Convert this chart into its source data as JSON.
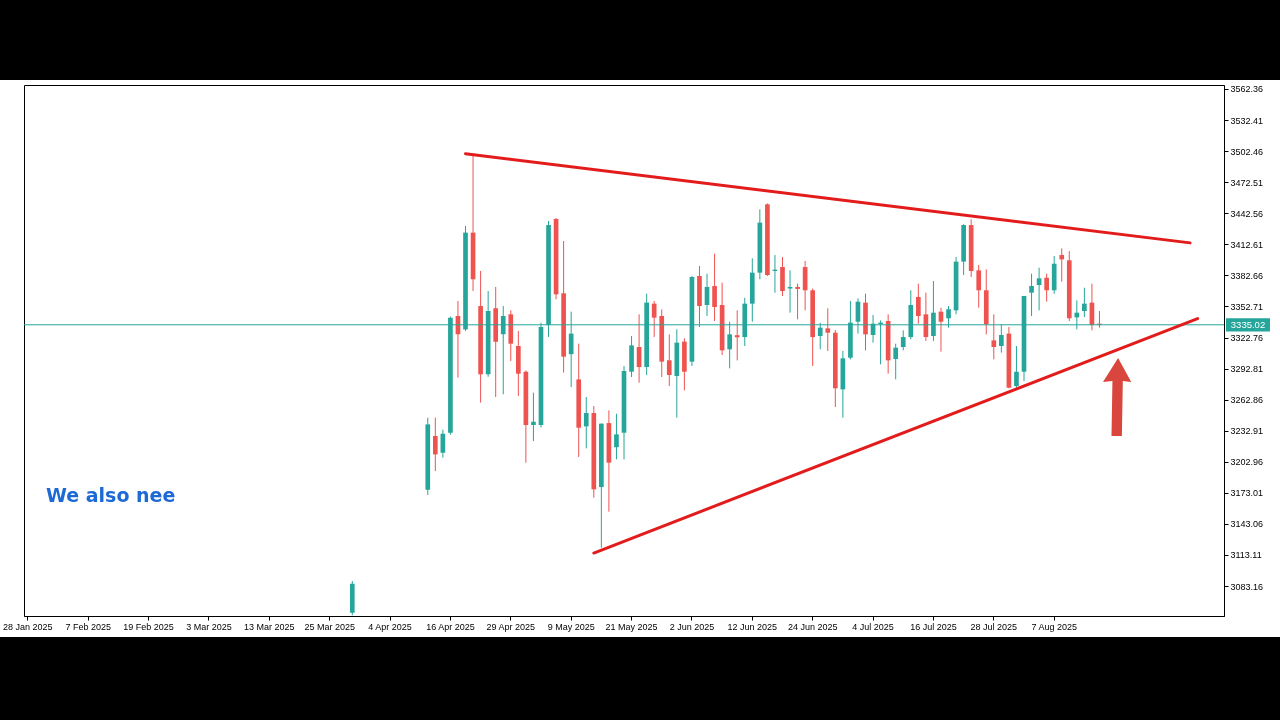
{
  "chart_data": {
    "type": "candlestick",
    "categories": [
      "28 Jan 2025",
      null,
      null,
      null,
      null,
      null,
      null,
      null,
      "7 Feb 2025",
      null,
      null,
      null,
      null,
      null,
      null,
      null,
      "19 Feb 2025",
      null,
      null,
      null,
      null,
      null,
      null,
      null,
      "3 Mar 2025",
      null,
      null,
      null,
      null,
      null,
      null,
      null,
      "13 Mar 2025",
      null,
      null,
      null,
      null,
      null,
      null,
      null,
      "25 Mar 2025",
      null,
      null,
      null,
      null,
      null,
      null,
      null,
      "4 Apr 2025",
      null,
      null,
      null,
      null,
      null,
      null,
      null,
      "16 Apr 2025",
      null,
      null,
      null,
      null,
      null,
      null,
      null,
      "29 Apr 2025",
      null,
      null,
      null,
      null,
      null,
      null,
      null,
      "9 May 2025",
      null,
      null,
      null,
      null,
      null,
      null,
      null,
      "21 May 2025",
      null,
      null,
      null,
      null,
      null,
      null,
      null,
      "2 Jun 2025",
      null,
      null,
      null,
      null,
      null,
      null,
      null,
      "12 Jun 2025",
      null,
      null,
      null,
      null,
      null,
      null,
      null,
      "24 Jun 2025",
      null,
      null,
      null,
      null,
      null,
      null,
      null,
      "4 Jul 2025",
      null,
      null,
      null,
      null,
      null,
      null,
      null,
      "16 Jul 2025",
      null,
      null,
      null,
      null,
      null,
      null,
      null,
      "28 Jul 2025",
      null,
      null,
      null,
      null,
      null,
      null,
      null,
      "7 Aug 2025",
      null,
      null,
      null,
      null,
      null,
      null,
      null,
      null,
      null,
      null,
      null,
      null,
      null,
      null,
      null,
      null,
      null,
      null,
      null,
      null,
      null,
      null
    ],
    "ohlc": [
      null,
      null,
      null,
      null,
      null,
      null,
      null,
      null,
      null,
      null,
      null,
      null,
      null,
      null,
      null,
      null,
      null,
      null,
      null,
      null,
      null,
      null,
      null,
      null,
      null,
      null,
      null,
      null,
      null,
      null,
      null,
      null,
      null,
      null,
      null,
      null,
      null,
      null,
      null,
      null,
      null,
      null,
      null,
      [
        3057.5,
        3088.0,
        3055.0,
        3085.4
      ],
      null,
      null,
      null,
      null,
      null,
      null,
      null,
      null,
      null,
      [
        3176.0,
        3245.5,
        3171.0,
        3239.0
      ],
      [
        3227.8,
        3245.5,
        3194.0,
        3210.1
      ],
      [
        3211.7,
        3234.0,
        3207.0,
        3230.0
      ],
      [
        3231.0,
        3343.0,
        3229.0,
        3341.9
      ],
      [
        3343.5,
        3358.0,
        3284.0,
        3325.8
      ],
      [
        3330.6,
        3430.3,
        3329.0,
        3423.9
      ],
      [
        3423.9,
        3500.0,
        3367.6,
        3378.9
      ],
      [
        3353.1,
        3386.9,
        3260.0,
        3287.3
      ],
      [
        3287.3,
        3367.6,
        3285.0,
        3348.3
      ],
      [
        3350.9,
        3371.5,
        3265.4,
        3318.8
      ],
      [
        3325.8,
        3353.1,
        3268.0,
        3343.5
      ],
      [
        3345.1,
        3349.0,
        3300.1,
        3316.8
      ],
      [
        3314.6,
        3329.0,
        3266.4,
        3287.9
      ],
      [
        3289.8,
        3291.0,
        3202.1,
        3238.4
      ],
      [
        3238.4,
        3269.6,
        3223.0,
        3241.6
      ],
      [
        3238.4,
        3337.0,
        3236.0,
        3332.9
      ],
      [
        3334.8,
        3435.1,
        3323.3,
        3431.2
      ],
      [
        3437.0,
        3438.0,
        3359.6,
        3364.4
      ],
      [
        3365.4,
        3415.8,
        3288.9,
        3304.3
      ],
      [
        3306.7,
        3347.7,
        3275.0,
        3326.5
      ],
      [
        3282.4,
        3316.8,
        3207.6,
        3235.8
      ],
      [
        3237.1,
        3265.4,
        3215.9,
        3250.0
      ],
      [
        3250.0,
        3256.7,
        3168.3,
        3176.4
      ],
      [
        3178.6,
        3240.0,
        3120.1,
        3239.7
      ],
      [
        3240.3,
        3252.6,
        3154.9,
        3202.1
      ],
      [
        3217.0,
        3249.3,
        3205.3,
        3229.4
      ],
      [
        3231.0,
        3295.3,
        3205.3,
        3290.5
      ],
      [
        3289.8,
        3324.2,
        3284.7,
        3315.2
      ],
      [
        3313.6,
        3345.1,
        3279.2,
        3294.3
      ],
      [
        3294.3,
        3365.0,
        3286.6,
        3356.4
      ],
      [
        3355.4,
        3358.0,
        3323.3,
        3341.9
      ],
      [
        3343.5,
        3349.9,
        3284.7,
        3299.5
      ],
      [
        3300.8,
        3325.8,
        3276.0,
        3286.6
      ],
      [
        3285.7,
        3330.7,
        3245.5,
        3317.8
      ],
      [
        3318.8,
        3322.0,
        3271.8,
        3289.8
      ],
      [
        3299.5,
        3382.0,
        3295.3,
        3381.1
      ],
      [
        3382.1,
        3391.7,
        3332.9,
        3353.1
      ],
      [
        3354.1,
        3384.3,
        3343.5,
        3371.5
      ],
      [
        3372.4,
        3403.6,
        3338.7,
        3352.2
      ],
      [
        3354.1,
        3375.6,
        3305.9,
        3310.4
      ],
      [
        3311.4,
        3338.0,
        3293.0,
        3325.8
      ],
      [
        3325.0,
        3349.0,
        3300.7,
        3323.0
      ],
      [
        3323.2,
        3361.0,
        3314.6,
        3355.4
      ],
      [
        3355.4,
        3399.1,
        3338.0,
        3385.3
      ],
      [
        3385.3,
        3446.4,
        3378.9,
        3433.5
      ],
      [
        3451.2,
        3452.0,
        3382.0,
        3383.0
      ],
      [
        3386.9,
        3402.3,
        3366.0,
        3388.2
      ],
      [
        3390.7,
        3400.4,
        3362.8,
        3367.6
      ],
      [
        3370.0,
        3387.5,
        3346.7,
        3371.5
      ],
      [
        3371.5,
        3374.7,
        3340.3,
        3369.6
      ],
      [
        3390.7,
        3396.5,
        3349.0,
        3368.3
      ],
      [
        3368.3,
        3370.0,
        3295.3,
        3323.2
      ],
      [
        3324.2,
        3337.0,
        3311.4,
        3332.3
      ],
      [
        3331.6,
        3350.9,
        3309.8,
        3327.4
      ],
      [
        3327.4,
        3330.0,
        3255.8,
        3273.8
      ],
      [
        3272.8,
        3309.8,
        3245.5,
        3302.7
      ],
      [
        3303.3,
        3358.0,
        3301.7,
        3337.1
      ],
      [
        3338.0,
        3360.5,
        3326.5,
        3357.3
      ],
      [
        3356.4,
        3365.0,
        3310.4,
        3325.8
      ],
      [
        3325.2,
        3344.5,
        3317.8,
        3336.1
      ],
      [
        3335.8,
        3339.3,
        3296.9,
        3337.1
      ],
      [
        3338.7,
        3345.1,
        3287.9,
        3300.8
      ],
      [
        3302.0,
        3316.8,
        3282.4,
        3313.0
      ],
      [
        3313.6,
        3329.7,
        3310.4,
        3323.2
      ],
      [
        3323.2,
        3368.3,
        3321.0,
        3354.1
      ],
      [
        3361.8,
        3374.7,
        3336.1,
        3343.5
      ],
      [
        3345.1,
        3366.0,
        3319.4,
        3323.2
      ],
      [
        3324.2,
        3377.3,
        3319.4,
        3346.7
      ],
      [
        3347.7,
        3351.5,
        3309.1,
        3338.0
      ],
      [
        3341.3,
        3353.1,
        3332.3,
        3350.0
      ],
      [
        3349.0,
        3400.4,
        3345.1,
        3395.9
      ],
      [
        3395.9,
        3432.0,
        3383.0,
        3431.2
      ],
      [
        3431.2,
        3436.7,
        3381.1,
        3386.9
      ],
      [
        3387.5,
        3392.7,
        3351.5,
        3368.3
      ],
      [
        3368.3,
        3388.5,
        3325.8,
        3335.5
      ],
      [
        3320.0,
        3345.1,
        3301.7,
        3313.6
      ],
      [
        3314.6,
        3335.5,
        3308.2,
        3325.2
      ],
      [
        3326.5,
        3332.9,
        3273.8,
        3274.4
      ],
      [
        3276.0,
        3314.6,
        3273.8,
        3289.8
      ],
      [
        3289.8,
        3363.0,
        3280.8,
        3362.8
      ],
      [
        3366.0,
        3384.3,
        3343.5,
        3372.4
      ],
      [
        3373.4,
        3390.1,
        3348.9,
        3379.8
      ],
      [
        3380.5,
        3384.3,
        3357.3,
        3368.3
      ],
      [
        3368.3,
        3401.4,
        3365.0,
        3393.9
      ],
      [
        3402.3,
        3408.7,
        3376.6,
        3398.1
      ],
      [
        3397.2,
        3406.2,
        3338.7,
        3341.3
      ],
      [
        3342.2,
        3358.6,
        3330.6,
        3346.7
      ],
      [
        3348.3,
        3370.8,
        3342.5,
        3355.4
      ],
      [
        3356.4,
        3374.7,
        3329.7,
        3334.8
      ],
      [
        3336.1,
        3348.3,
        3332.3,
        3335.0
      ],
      null,
      null,
      null,
      null,
      null,
      null,
      null,
      null,
      null,
      null,
      null,
      null,
      null,
      null,
      null,
      null
    ],
    "colors": [
      null,
      null,
      null,
      null,
      null,
      null,
      null,
      null,
      null,
      null,
      null,
      null,
      null,
      null,
      null,
      null,
      null,
      null,
      null,
      null,
      null,
      null,
      null,
      null,
      null,
      null,
      null,
      null,
      null,
      null,
      null,
      null,
      null,
      null,
      null,
      null,
      null,
      null,
      null,
      null,
      null,
      null,
      null,
      "#26a69a",
      null,
      null,
      null,
      null,
      null,
      null,
      null,
      null,
      null,
      "#26a69a",
      "#ef5350",
      "#26a69a",
      "#26a69a",
      "#ef5350",
      "#26a69a",
      "#ef5350",
      "#ef5350",
      "#26a69a",
      "#ef5350",
      "#26a69a",
      "#ef5350",
      "#ef5350",
      "#ef5350",
      "#26a69a",
      "#26a69a",
      "#26a69a",
      "#ef5350",
      "#ef5350",
      "#26a69a",
      "#ef5350",
      "#26a69a",
      "#ef5350",
      "#26a69a",
      "#ef5350",
      "#26a69a",
      "#26a69a",
      "#26a69a",
      "#ef5350",
      "#26a69a",
      "#ef5350",
      "#ef5350",
      "#ef5350",
      "#26a69a",
      "#ef5350",
      "#26a69a",
      "#ef5350",
      "#26a69a",
      "#ef5350",
      "#ef5350",
      "#26a69a",
      "#ef5350",
      "#26a69a",
      "#26a69a",
      "#26a69a",
      "#ef5350",
      "#26a69a",
      "#ef5350",
      "#26a69a",
      "#ef5350",
      "#ef5350",
      "#ef5350",
      "#26a69a",
      "#ef5350",
      "#ef5350",
      "#26a69a",
      "#26a69a",
      "#26a69a",
      "#ef5350",
      "#26a69a",
      "#26a69a",
      "#ef5350",
      "#26a69a",
      "#26a69a",
      "#26a69a",
      "#ef5350",
      "#ef5350",
      "#26a69a",
      "#ef5350",
      "#26a69a",
      "#26a69a",
      "#26a69a",
      "#ef5350",
      "#ef5350",
      "#ef5350",
      "#ef5350",
      "#26a69a",
      "#ef5350",
      "#26a69a",
      "#26a69a",
      "#26a69a",
      "#26a69a",
      "#ef5350",
      "#26a69a",
      "#ef5350",
      "#ef5350",
      "#26a69a",
      "#26a69a",
      "#ef5350",
      "#ef5350",
      null,
      null,
      null,
      null,
      null,
      null,
      null,
      null,
      null,
      null,
      null,
      null,
      null,
      null,
      null,
      null
    ],
    "series": [
      {
        "type": "line",
        "color": "#e31b1b",
        "values": [
          null,
          null,
          null,
          null,
          null,
          null,
          null,
          null,
          null,
          null,
          null,
          null,
          null,
          null,
          null,
          null,
          null,
          null,
          null,
          null,
          null,
          null,
          null,
          null,
          null,
          null,
          null,
          null,
          null,
          null,
          null,
          null,
          null,
          null,
          null,
          null,
          null,
          null,
          null,
          null,
          null,
          null,
          null,
          null,
          null,
          null,
          null,
          null,
          null,
          null,
          null,
          null,
          null,
          null,
          null,
          null,
          null,
          null,
          3500,
          null,
          null,
          null,
          null,
          null,
          null,
          null,
          null,
          null,
          null,
          null,
          null,
          null,
          null,
          null,
          null,
          null,
          null,
          null,
          null,
          null,
          null,
          null,
          null,
          null,
          null,
          null,
          null,
          null,
          null,
          null,
          null,
          null,
          null,
          null,
          null,
          null,
          null,
          null,
          null,
          null,
          null,
          null,
          null,
          null,
          null,
          null,
          null,
          null,
          null,
          null,
          null,
          null,
          null,
          null,
          null,
          null,
          null,
          null,
          null,
          null,
          null,
          null,
          null,
          null,
          null,
          null,
          null,
          null,
          null,
          null,
          null,
          null,
          null,
          null,
          null,
          null,
          null,
          null,
          null,
          null,
          null,
          null,
          null,
          null,
          null,
          null,
          null,
          null,
          null,
          null,
          null,
          null,
          null,
          null,
          3414,
          null,
          null,
          null,
          null
        ]
      },
      {
        "type": "line",
        "color": "#e31b1b",
        "values": [
          null,
          null,
          null,
          null,
          null,
          null,
          null,
          null,
          null,
          null,
          null,
          null,
          null,
          null,
          null,
          null,
          null,
          null,
          null,
          null,
          null,
          null,
          null,
          null,
          null,
          null,
          null,
          null,
          null,
          null,
          null,
          null,
          null,
          null,
          null,
          null,
          null,
          null,
          null,
          null,
          null,
          null,
          null,
          null,
          null,
          null,
          null,
          null,
          null,
          null,
          null,
          null,
          null,
          null,
          null,
          null,
          null,
          null,
          null,
          null,
          null,
          null,
          null,
          null,
          null,
          null,
          null,
          null,
          null,
          null,
          null,
          null,
          null,
          null,
          null,
          3115,
          null,
          null,
          null,
          null,
          null,
          null,
          null,
          null,
          null,
          null,
          null,
          null,
          null,
          null,
          null,
          null,
          null,
          null,
          null,
          null,
          null,
          null,
          null,
          null,
          null,
          null,
          null,
          null,
          null,
          null,
          null,
          null,
          null,
          null,
          null,
          null,
          null,
          null,
          null,
          null,
          null,
          null,
          null,
          null,
          null,
          null,
          null,
          null,
          null,
          null,
          null,
          null,
          null,
          null,
          null,
          null,
          null,
          null,
          null,
          null,
          null,
          null,
          null,
          null,
          null,
          null,
          null,
          null,
          null,
          null,
          null,
          null,
          null,
          null,
          null,
          null,
          null,
          null,
          null,
          3341,
          null,
          null,
          null
        ]
      }
    ],
    "ylim": [
      3054.3,
      3566.2
    ],
    "yticks": [
      3083.16,
      3113.11,
      3143.06,
      3173.01,
      3202.96,
      3232.91,
      3262.86,
      3292.81,
      3322.76,
      3352.71,
      3382.66,
      3412.61,
      3442.56,
      3472.51,
      3502.46,
      3532.41,
      3562.36
    ],
    "ref_lines": [
      {
        "axis": "y",
        "value": 3335.02,
        "label": "3335.02",
        "color": "#26a69a"
      }
    ],
    "annotations": [
      "We also nee"
    ]
  }
}
